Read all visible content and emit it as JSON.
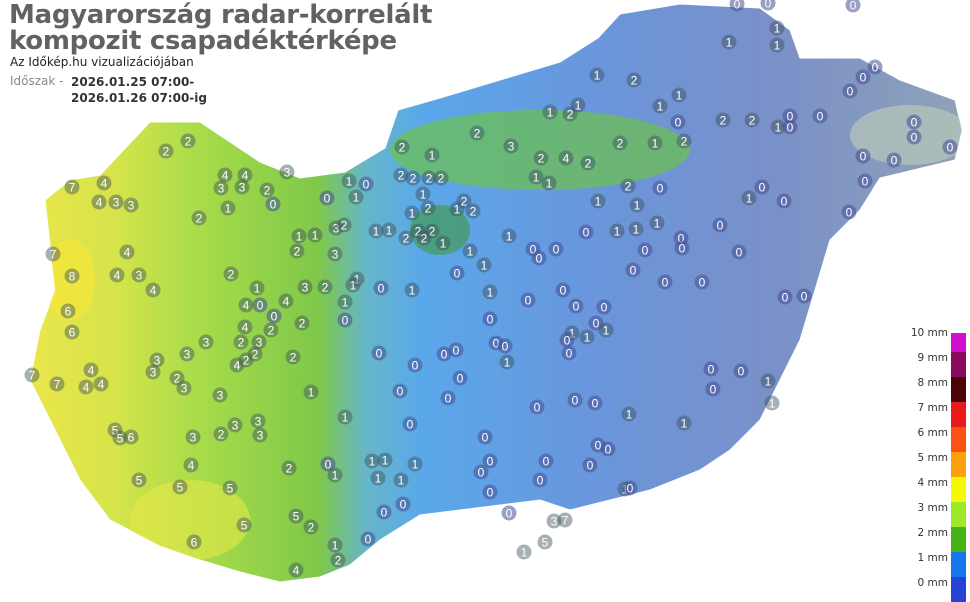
{
  "header": {
    "title_line1": "Magyarország radar-korrelált",
    "title_line2": "kompozit csapadéktérképe",
    "subtitle": "Az Időkép.hu vizualizációjában",
    "period_label": "Időszak -",
    "period_from": "2026.01.25 07:00-",
    "period_to": "2026.01.26 07:00-ig"
  },
  "legend": {
    "items": [
      {
        "label": "10 mm",
        "color": "#d10fcf"
      },
      {
        "label": "9 mm",
        "color": "#8a0a5e"
      },
      {
        "label": "8 mm",
        "color": "#4a0408"
      },
      {
        "label": "7 mm",
        "color": "#ea1a1a"
      },
      {
        "label": "6 mm",
        "color": "#fb5214"
      },
      {
        "label": "5 mm",
        "color": "#fca00e"
      },
      {
        "label": "4 mm",
        "color": "#f5f806"
      },
      {
        "label": "3 mm",
        "color": "#9ee82a"
      },
      {
        "label": "2 mm",
        "color": "#47b316"
      },
      {
        "label": "1 mm",
        "color": "#1478ec"
      },
      {
        "label": "0 mm",
        "color": "#2842d8"
      }
    ]
  },
  "map": {
    "station_values": [
      7,
      4,
      4,
      3,
      3,
      2,
      2,
      4,
      4,
      3,
      3,
      2,
      3,
      2,
      1,
      0,
      8,
      4,
      4,
      3,
      4,
      6,
      6,
      7,
      2,
      1,
      0,
      4,
      4,
      0,
      2,
      4,
      3,
      2,
      1,
      0,
      3,
      3,
      4,
      4,
      4,
      7,
      7,
      3,
      3,
      2,
      3,
      2,
      4,
      2,
      3,
      3,
      2,
      2,
      2,
      1,
      3,
      3,
      3,
      2,
      3,
      4,
      5,
      5,
      5,
      6,
      5,
      5,
      2,
      5,
      5,
      2,
      6,
      4,
      2,
      1,
      2,
      2,
      2,
      2,
      1,
      2,
      1,
      1,
      2,
      2,
      2,
      2,
      2,
      2,
      1,
      1,
      0,
      1,
      1,
      0,
      0,
      0,
      0,
      1,
      2,
      1,
      2,
      3,
      2,
      4,
      2,
      1,
      1,
      2,
      2,
      1,
      2,
      1,
      2,
      1,
      1,
      2,
      1,
      1,
      0,
      2,
      2,
      1,
      0,
      0,
      0,
      1,
      1,
      1,
      0,
      0,
      0,
      0,
      0,
      0,
      0,
      0,
      0,
      0,
      0,
      0,
      0,
      0,
      0,
      1,
      0,
      0,
      1,
      1,
      0,
      1,
      1,
      0,
      1,
      0,
      1,
      3,
      2,
      1,
      1,
      2,
      3,
      1,
      1,
      1,
      1,
      0,
      1,
      1,
      0,
      0,
      0,
      0,
      0,
      0,
      0,
      0,
      0,
      0,
      0,
      0,
      1,
      0,
      1,
      0,
      1,
      1,
      0,
      0,
      0,
      0,
      0,
      0,
      0,
      0,
      0,
      1,
      0,
      0,
      1,
      0,
      0,
      0,
      0,
      0,
      0,
      0,
      0,
      1,
      1,
      1,
      1,
      1,
      1,
      1,
      0,
      1,
      1,
      0,
      0,
      0,
      0,
      0,
      0,
      0,
      0,
      0,
      1,
      0,
      0,
      0,
      0,
      3,
      7,
      5,
      1
    ],
    "colors": {
      "west": "#e8e84a",
      "center": "#62b0e6",
      "east": "#7f92c6"
    }
  }
}
